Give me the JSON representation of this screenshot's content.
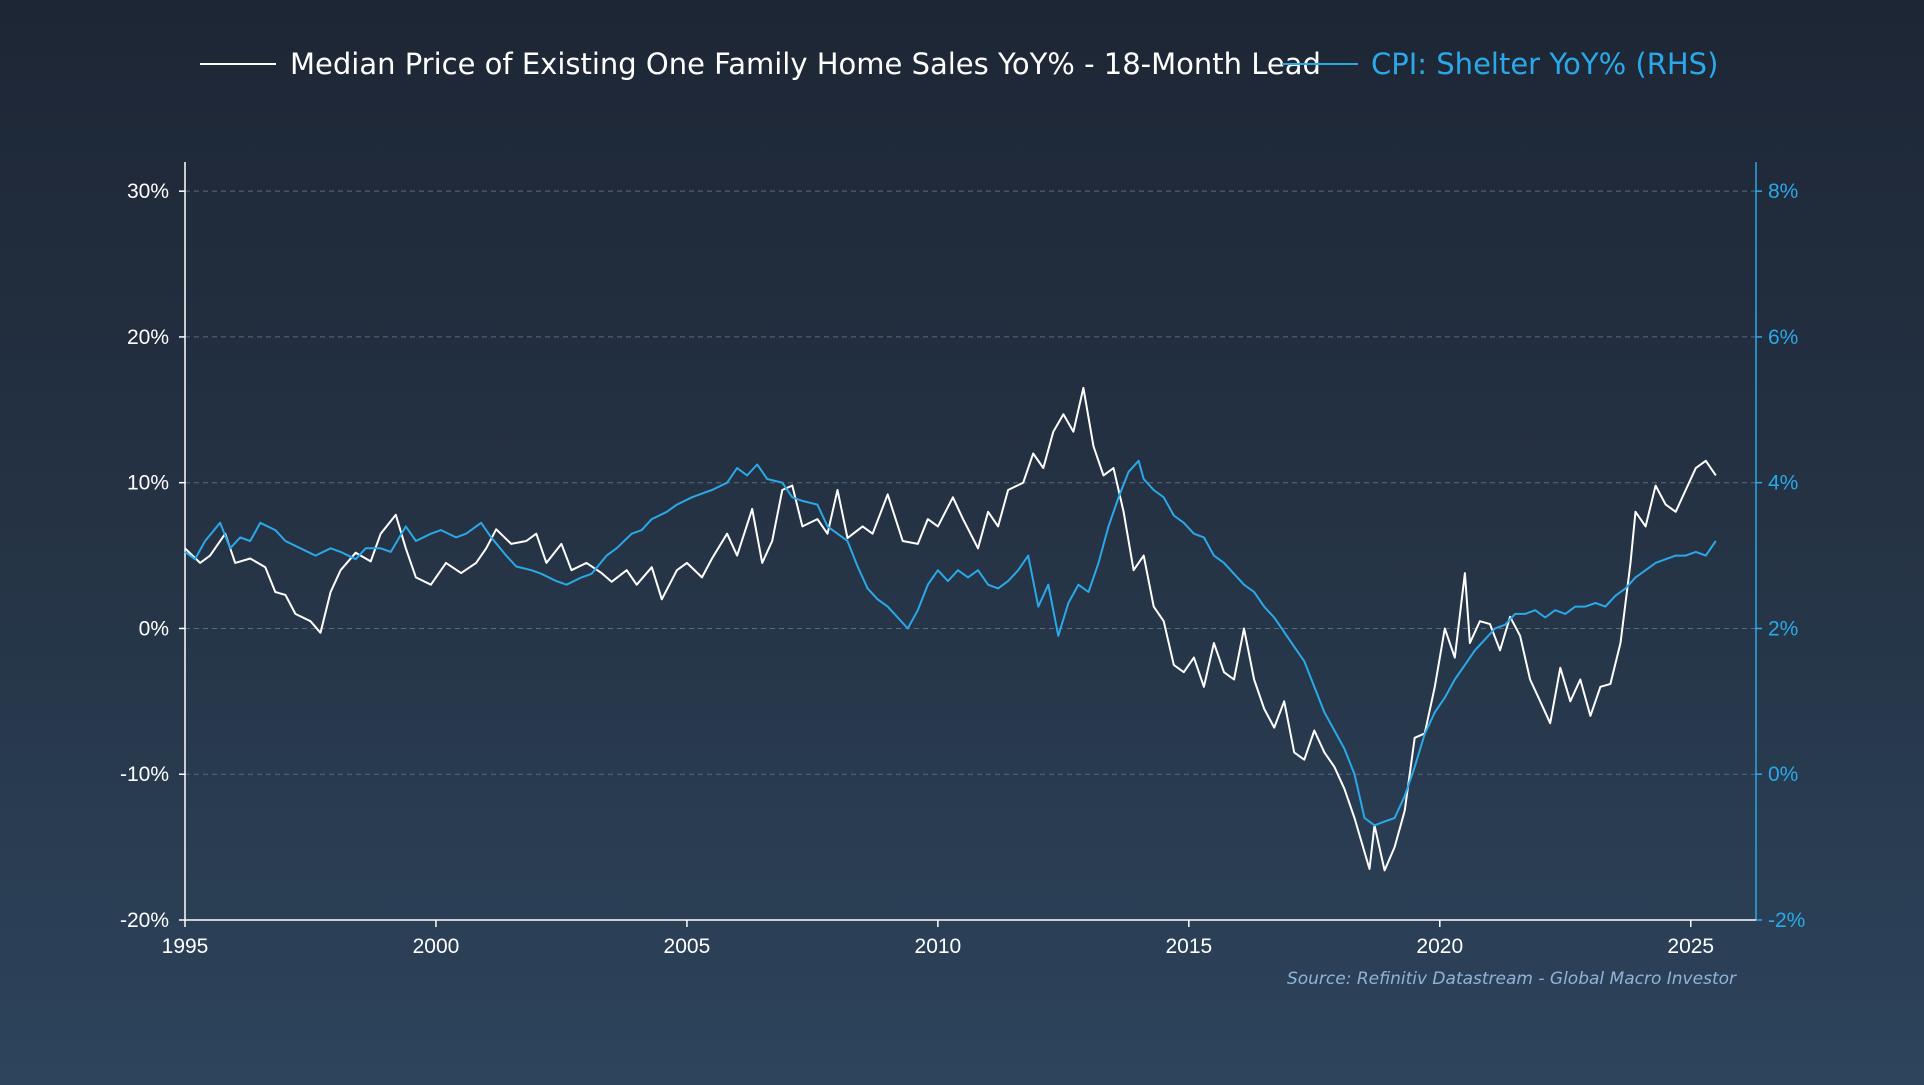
{
  "colors": {
    "series1": "#ffffff",
    "series2": "#2ba8e8",
    "grid": "#5b6a7c",
    "axis": "#ffffff",
    "axisRight": "#2ba8e8",
    "source": "#8fb3d9"
  },
  "source": "Source: Refinitiv Datastream - Global Macro Investor",
  "chart_data": {
    "type": "line",
    "grid": "horizontal dashed",
    "legend_position": "top",
    "x_ticks": [
      "1995",
      "2000",
      "2005",
      "2010",
      "2015",
      "2020",
      "2025"
    ],
    "xlim": [
      1995,
      2026.3
    ],
    "y_left": {
      "ylim": [
        -20,
        32
      ],
      "ticks": [
        "30%",
        "20%",
        "10%",
        "0%",
        "-10%",
        "-20%"
      ]
    },
    "y_right": {
      "ylim": [
        -2,
        8.4
      ],
      "ticks": [
        "8%",
        "6%",
        "4%",
        "2%",
        "0%",
        "-2%"
      ]
    },
    "series": [
      {
        "name": "Median Price of Existing One Family Home Sales YoY% - 18-Month Lead",
        "axis": "left",
        "points": [
          [
            1995.0,
            5.5
          ],
          [
            1995.3,
            4.5
          ],
          [
            1995.5,
            5.0
          ],
          [
            1995.8,
            6.5
          ],
          [
            1996.0,
            4.5
          ],
          [
            1996.3,
            4.8
          ],
          [
            1996.6,
            4.2
          ],
          [
            1996.8,
            2.5
          ],
          [
            1997.0,
            2.3
          ],
          [
            1997.2,
            1.0
          ],
          [
            1997.5,
            0.5
          ],
          [
            1997.7,
            -0.3
          ],
          [
            1997.9,
            2.5
          ],
          [
            1998.1,
            4.0
          ],
          [
            1998.4,
            5.2
          ],
          [
            1998.7,
            4.6
          ],
          [
            1998.9,
            6.5
          ],
          [
            1999.2,
            7.8
          ],
          [
            1999.4,
            5.5
          ],
          [
            1999.6,
            3.5
          ],
          [
            1999.9,
            3.0
          ],
          [
            2000.2,
            4.5
          ],
          [
            2000.5,
            3.8
          ],
          [
            2000.8,
            4.5
          ],
          [
            2001.0,
            5.5
          ],
          [
            2001.2,
            6.8
          ],
          [
            2001.5,
            5.8
          ],
          [
            2001.8,
            6.0
          ],
          [
            2002.0,
            6.5
          ],
          [
            2002.2,
            4.5
          ],
          [
            2002.5,
            5.8
          ],
          [
            2002.7,
            4.0
          ],
          [
            2003.0,
            4.5
          ],
          [
            2003.3,
            3.8
          ],
          [
            2003.5,
            3.2
          ],
          [
            2003.8,
            4.0
          ],
          [
            2004.0,
            3.0
          ],
          [
            2004.3,
            4.2
          ],
          [
            2004.5,
            2.0
          ],
          [
            2004.8,
            4.0
          ],
          [
            2005.0,
            4.5
          ],
          [
            2005.3,
            3.5
          ],
          [
            2005.5,
            4.8
          ],
          [
            2005.8,
            6.5
          ],
          [
            2006.0,
            5.0
          ],
          [
            2006.3,
            8.2
          ],
          [
            2006.5,
            4.5
          ],
          [
            2006.7,
            6.0
          ],
          [
            2006.9,
            9.5
          ],
          [
            2007.1,
            9.8
          ],
          [
            2007.3,
            7.0
          ],
          [
            2007.6,
            7.5
          ],
          [
            2007.8,
            6.5
          ],
          [
            2008.0,
            9.5
          ],
          [
            2008.2,
            6.2
          ],
          [
            2008.5,
            7.0
          ],
          [
            2008.7,
            6.5
          ],
          [
            2009.0,
            9.2
          ],
          [
            2009.3,
            6.0
          ],
          [
            2009.6,
            5.8
          ],
          [
            2009.8,
            7.5
          ],
          [
            2010.0,
            7.0
          ],
          [
            2010.3,
            9.0
          ],
          [
            2010.5,
            7.5
          ],
          [
            2010.8,
            5.5
          ],
          [
            2011.0,
            8.0
          ],
          [
            2011.2,
            7.0
          ],
          [
            2011.4,
            9.5
          ],
          [
            2011.7,
            10.0
          ],
          [
            2011.9,
            12.0
          ],
          [
            2012.1,
            11.0
          ],
          [
            2012.3,
            13.5
          ],
          [
            2012.5,
            14.7
          ],
          [
            2012.7,
            13.5
          ],
          [
            2012.9,
            16.5
          ],
          [
            2013.1,
            12.5
          ],
          [
            2013.3,
            10.5
          ],
          [
            2013.5,
            11.0
          ],
          [
            2013.7,
            8.0
          ],
          [
            2013.9,
            4.0
          ],
          [
            2014.1,
            5.0
          ],
          [
            2014.3,
            1.5
          ],
          [
            2014.5,
            0.5
          ],
          [
            2014.7,
            -2.5
          ],
          [
            2014.9,
            -3.0
          ],
          [
            2015.1,
            -2.0
          ],
          [
            2015.3,
            -4.0
          ],
          [
            2015.5,
            -1.0
          ],
          [
            2015.7,
            -3.0
          ],
          [
            2015.9,
            -3.5
          ],
          [
            2016.1,
            0.0
          ],
          [
            2016.3,
            -3.5
          ],
          [
            2016.5,
            -5.5
          ],
          [
            2016.7,
            -6.8
          ],
          [
            2016.9,
            -5.0
          ],
          [
            2017.1,
            -8.5
          ],
          [
            2017.3,
            -9.0
          ],
          [
            2017.5,
            -7.0
          ],
          [
            2017.7,
            -8.5
          ],
          [
            2017.9,
            -9.5
          ],
          [
            2018.1,
            -11.0
          ],
          [
            2018.3,
            -13.0
          ],
          [
            2018.6,
            -16.5
          ],
          [
            2018.7,
            -13.5
          ],
          [
            2018.9,
            -16.6
          ],
          [
            2019.1,
            -15.0
          ],
          [
            2019.3,
            -12.5
          ],
          [
            2019.5,
            -7.5
          ],
          [
            2019.7,
            -7.2
          ],
          [
            2019.9,
            -4.0
          ],
          [
            2020.1,
            0.0
          ],
          [
            2020.3,
            -2.0
          ],
          [
            2020.5,
            3.8
          ],
          [
            2020.6,
            -1.0
          ],
          [
            2020.8,
            0.5
          ],
          [
            2021.0,
            0.3
          ],
          [
            2021.2,
            -1.5
          ],
          [
            2021.4,
            0.8
          ],
          [
            2021.6,
            -0.5
          ],
          [
            2021.8,
            -3.5
          ],
          [
            2022.0,
            -5.0
          ],
          [
            2022.2,
            -6.5
          ],
          [
            2022.4,
            -2.7
          ],
          [
            2022.6,
            -5.0
          ],
          [
            2022.8,
            -3.5
          ],
          [
            2023.0,
            -6.0
          ],
          [
            2023.2,
            -4.0
          ],
          [
            2023.4,
            -3.8
          ],
          [
            2023.6,
            -1.0
          ],
          [
            2023.8,
            4.5
          ],
          [
            2023.9,
            8.0
          ],
          [
            2024.1,
            7.0
          ],
          [
            2024.3,
            9.8
          ],
          [
            2024.5,
            8.5
          ],
          [
            2024.7,
            8.0
          ],
          [
            2024.9,
            9.5
          ],
          [
            2025.1,
            11.0
          ],
          [
            2025.3,
            11.5
          ],
          [
            2025.5,
            10.5
          ]
        ]
      },
      {
        "name": "CPI: Shelter YoY% (RHS)",
        "axis": "right",
        "points": [
          [
            1995.0,
            3.05
          ],
          [
            1995.2,
            2.95
          ],
          [
            1995.4,
            3.2
          ],
          [
            1995.7,
            3.45
          ],
          [
            1995.9,
            3.1
          ],
          [
            1996.1,
            3.25
          ],
          [
            1996.3,
            3.2
          ],
          [
            1996.5,
            3.45
          ],
          [
            1996.8,
            3.35
          ],
          [
            1997.0,
            3.2
          ],
          [
            1997.3,
            3.1
          ],
          [
            1997.6,
            3.0
          ],
          [
            1997.9,
            3.1
          ],
          [
            1998.1,
            3.05
          ],
          [
            1998.4,
            2.95
          ],
          [
            1998.6,
            3.1
          ],
          [
            1998.9,
            3.1
          ],
          [
            1999.1,
            3.05
          ],
          [
            1999.4,
            3.4
          ],
          [
            1999.6,
            3.2
          ],
          [
            1999.9,
            3.3
          ],
          [
            2000.1,
            3.35
          ],
          [
            2000.4,
            3.25
          ],
          [
            2000.6,
            3.3
          ],
          [
            2000.9,
            3.45
          ],
          [
            2001.1,
            3.25
          ],
          [
            2001.4,
            3.0
          ],
          [
            2001.6,
            2.85
          ],
          [
            2001.9,
            2.8
          ],
          [
            2002.1,
            2.75
          ],
          [
            2002.4,
            2.65
          ],
          [
            2002.6,
            2.6
          ],
          [
            2002.9,
            2.7
          ],
          [
            2003.1,
            2.75
          ],
          [
            2003.4,
            3.0
          ],
          [
            2003.6,
            3.1
          ],
          [
            2003.9,
            3.3
          ],
          [
            2004.1,
            3.35
          ],
          [
            2004.3,
            3.5
          ],
          [
            2004.6,
            3.6
          ],
          [
            2004.8,
            3.7
          ],
          [
            2005.1,
            3.8
          ],
          [
            2005.3,
            3.85
          ],
          [
            2005.5,
            3.9
          ],
          [
            2005.8,
            4.0
          ],
          [
            2006.0,
            4.2
          ],
          [
            2006.2,
            4.1
          ],
          [
            2006.4,
            4.25
          ],
          [
            2006.6,
            4.05
          ],
          [
            2006.9,
            4.0
          ],
          [
            2007.1,
            3.8
          ],
          [
            2007.3,
            3.75
          ],
          [
            2007.6,
            3.7
          ],
          [
            2007.8,
            3.4
          ],
          [
            2008.0,
            3.3
          ],
          [
            2008.2,
            3.2
          ],
          [
            2008.4,
            2.85
          ],
          [
            2008.6,
            2.55
          ],
          [
            2008.8,
            2.4
          ],
          [
            2009.0,
            2.3
          ],
          [
            2009.2,
            2.15
          ],
          [
            2009.4,
            2.0
          ],
          [
            2009.6,
            2.25
          ],
          [
            2009.8,
            2.6
          ],
          [
            2010.0,
            2.8
          ],
          [
            2010.2,
            2.65
          ],
          [
            2010.4,
            2.8
          ],
          [
            2010.6,
            2.7
          ],
          [
            2010.8,
            2.8
          ],
          [
            2011.0,
            2.6
          ],
          [
            2011.2,
            2.55
          ],
          [
            2011.4,
            2.65
          ],
          [
            2011.6,
            2.8
          ],
          [
            2011.8,
            3.0
          ],
          [
            2012.0,
            2.3
          ],
          [
            2012.2,
            2.6
          ],
          [
            2012.4,
            1.9
          ],
          [
            2012.6,
            2.35
          ],
          [
            2012.8,
            2.6
          ],
          [
            2013.0,
            2.5
          ],
          [
            2013.2,
            2.9
          ],
          [
            2013.4,
            3.4
          ],
          [
            2013.6,
            3.8
          ],
          [
            2013.8,
            4.15
          ],
          [
            2014.0,
            4.3
          ],
          [
            2014.1,
            4.05
          ],
          [
            2014.3,
            3.9
          ],
          [
            2014.5,
            3.8
          ],
          [
            2014.7,
            3.55
          ],
          [
            2014.9,
            3.45
          ],
          [
            2015.1,
            3.3
          ],
          [
            2015.3,
            3.25
          ],
          [
            2015.5,
            3.0
          ],
          [
            2015.7,
            2.9
          ],
          [
            2015.9,
            2.75
          ],
          [
            2016.1,
            2.6
          ],
          [
            2016.3,
            2.5
          ],
          [
            2016.5,
            2.3
          ],
          [
            2016.7,
            2.15
          ],
          [
            2016.9,
            1.95
          ],
          [
            2017.1,
            1.75
          ],
          [
            2017.3,
            1.55
          ],
          [
            2017.5,
            1.2
          ],
          [
            2017.7,
            0.85
          ],
          [
            2017.9,
            0.6
          ],
          [
            2018.1,
            0.35
          ],
          [
            2018.3,
            0.0
          ],
          [
            2018.5,
            -0.6
          ],
          [
            2018.7,
            -0.7
          ],
          [
            2018.9,
            -0.65
          ],
          [
            2019.1,
            -0.6
          ],
          [
            2019.3,
            -0.3
          ],
          [
            2019.5,
            0.1
          ],
          [
            2019.7,
            0.55
          ],
          [
            2019.9,
            0.85
          ],
          [
            2020.1,
            1.05
          ],
          [
            2020.3,
            1.3
          ],
          [
            2020.5,
            1.5
          ],
          [
            2020.7,
            1.7
          ],
          [
            2020.9,
            1.85
          ],
          [
            2021.1,
            2.0
          ],
          [
            2021.3,
            2.05
          ],
          [
            2021.5,
            2.2
          ],
          [
            2021.7,
            2.2
          ],
          [
            2021.9,
            2.25
          ],
          [
            2022.1,
            2.15
          ],
          [
            2022.3,
            2.25
          ],
          [
            2022.5,
            2.2
          ],
          [
            2022.7,
            2.3
          ],
          [
            2022.9,
            2.3
          ],
          [
            2023.1,
            2.35
          ],
          [
            2023.3,
            2.3
          ],
          [
            2023.5,
            2.45
          ],
          [
            2023.7,
            2.55
          ],
          [
            2023.9,
            2.7
          ],
          [
            2024.1,
            2.8
          ],
          [
            2024.3,
            2.9
          ],
          [
            2024.5,
            2.95
          ],
          [
            2024.7,
            3.0
          ],
          [
            2024.9,
            3.0
          ],
          [
            2025.1,
            3.05
          ],
          [
            2025.3,
            3.0
          ],
          [
            2025.5,
            3.2
          ]
        ]
      }
    ]
  }
}
